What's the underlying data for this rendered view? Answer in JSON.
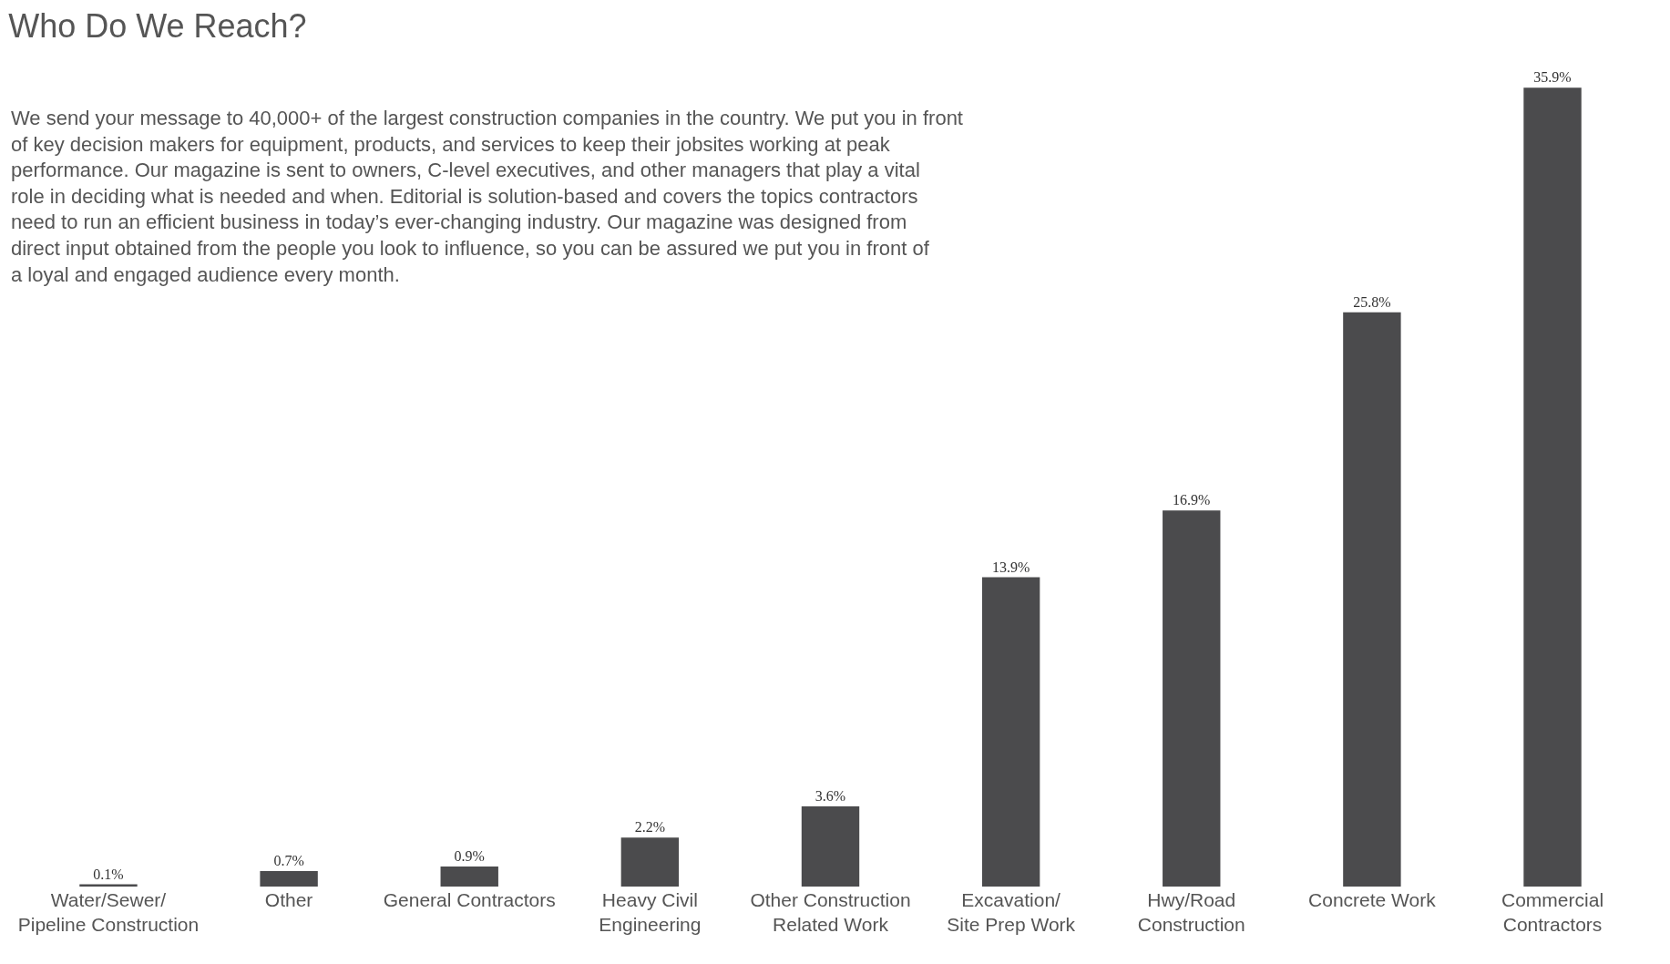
{
  "chart_data": {
    "type": "bar",
    "title": "Who Do We Reach?",
    "annotations": [
      "We send your message to 40,000+ of the largest construction companies in the country. We put you in front of key decision makers for equipment, products, and services to keep their jobsites working at peak performance. Our magazine is sent to owners, C-level executives, and other managers that play a vital role in deciding what is needed and when. Editorial is solution-based and covers the topics contractors need to run an efficient business in today’s ever-changing industry. Our magazine was designed from direct input obtained from the people you look to influence, so you can be assured we put you in front of a loyal and engaged audience every month."
    ],
    "categories": [
      "Water/Sewer/\nPipeline Construction",
      "Other",
      "General Contractors",
      "Heavy Civil\nEngineering",
      "Other Construction\nRelated Work",
      "Excavation/\nSite Prep Work",
      "Hwy/Road\nConstruction",
      "Concrete Work",
      "Commercial\nContractors"
    ],
    "values": [
      0.1,
      0.7,
      0.9,
      2.2,
      3.6,
      13.9,
      16.9,
      25.8,
      35.9
    ],
    "value_labels": [
      "0.1%",
      "0.7%",
      "0.9%",
      "2.2%",
      "3.6%",
      "13.9%",
      "16.9%",
      "25.8%",
      "35.9%"
    ],
    "color": "#4b4b4d",
    "legend": false
  }
}
